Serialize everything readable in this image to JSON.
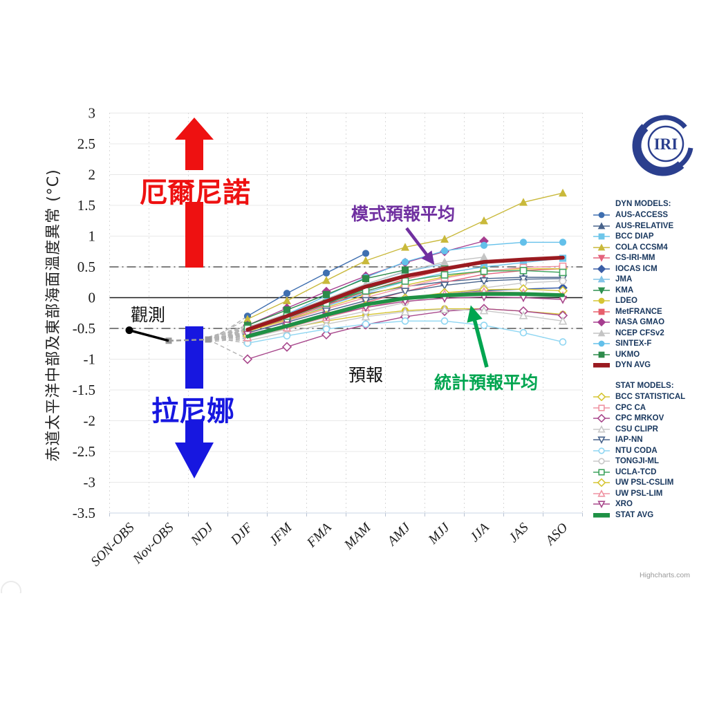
{
  "header": {
    "logo_text": "IRI"
  },
  "credit": "Highcharts.com",
  "annotations": {
    "el_nino": "厄爾尼諾",
    "la_nina": "拉尼娜",
    "observed": "觀測",
    "forecast": "預報",
    "dyn_avg": "模式預報平均",
    "stat_avg": "統計預報平均"
  },
  "colors": {
    "el_nino_arrow": "#ee1111",
    "la_nina_arrow": "#1717e0",
    "dyn_avg_annotation": "#7030a0",
    "stat_avg_annotation": "#00a550",
    "legend_text": "#17365d"
  },
  "chart_data": {
    "type": "line",
    "title": "",
    "ylabel": "赤道太平洋中部及東部海面溫度異常 (°C)",
    "xlabel": "",
    "ylim": [
      -3.5,
      3
    ],
    "ytick_step": 0.5,
    "grid": true,
    "legend_position": "right",
    "categories": [
      "SON-OBS",
      "Nov-OBS",
      "NDJ",
      "DJF",
      "JFM",
      "FMA",
      "MAM",
      "AMJ",
      "MJJ",
      "JJA",
      "JAS",
      "ASO"
    ],
    "reference_lines": [
      {
        "y": 0,
        "style": "solid",
        "color": "#1a1a1a"
      },
      {
        "y": 0.5,
        "style": "dash-dot",
        "color": "#333333"
      },
      {
        "y": -0.5,
        "style": "dash-dot",
        "color": "#333333"
      }
    ],
    "observation": {
      "name": "觀測",
      "color": "#000000",
      "values": [
        -0.53,
        -0.7,
        null,
        null,
        null,
        null,
        null,
        null,
        null,
        null,
        null,
        null
      ],
      "extension": {
        "color": "#9a9a9a",
        "values": [
          null,
          -0.7,
          -0.68,
          null,
          null,
          null,
          null,
          null,
          null,
          null,
          null,
          null
        ]
      }
    },
    "fan_origin": {
      "category": "NDJ",
      "value": -0.68
    },
    "legend_groups": [
      {
        "id": "DYN",
        "title": "DYN MODELS:"
      },
      {
        "id": "STAT",
        "title": "STAT MODELS:"
      }
    ],
    "series": [
      {
        "name": "AUS-ACCESS",
        "group": "DYN",
        "color": "#3f6fb0",
        "marker": "circle",
        "marker_fill": "filled",
        "avg": false,
        "values": [
          null,
          null,
          null,
          -0.3,
          0.07,
          0.4,
          0.72,
          null,
          null,
          null,
          null,
          null
        ]
      },
      {
        "name": "AUS-RELATIVE",
        "group": "DYN",
        "color": "#49648c",
        "marker": "triangle",
        "marker_fill": "filled",
        "avg": false,
        "values": [
          null,
          null,
          null,
          -0.5,
          -0.3,
          -0.1,
          0.06,
          0.18,
          0.26,
          0.31,
          0.33,
          0.33
        ]
      },
      {
        "name": "BCC DIAP",
        "group": "DYN",
        "color": "#6ec6ea",
        "marker": "square",
        "marker_fill": "filled",
        "avg": false,
        "values": [
          null,
          null,
          null,
          -0.58,
          -0.38,
          -0.14,
          0.08,
          0.26,
          0.4,
          0.5,
          0.57,
          0.64
        ]
      },
      {
        "name": "COLA CCSM4",
        "group": "DYN",
        "color": "#c9b93b",
        "marker": "triangle",
        "marker_fill": "filled",
        "avg": false,
        "values": [
          null,
          null,
          null,
          -0.35,
          -0.05,
          0.28,
          0.6,
          0.82,
          0.95,
          1.25,
          1.55,
          1.7
        ]
      },
      {
        "name": "CS-IRI-MM",
        "group": "DYN",
        "color": "#e4637c",
        "marker": "triangle-down",
        "marker_fill": "filled",
        "avg": false,
        "values": [
          null,
          null,
          null,
          -0.62,
          -0.45,
          -0.26,
          -0.08,
          0.1,
          0.25,
          0.38,
          0.44,
          0.47
        ]
      },
      {
        "name": "IOCAS ICM",
        "group": "DYN",
        "color": "#3b5ea6",
        "marker": "diamond",
        "marker_fill": "filled",
        "avg": false,
        "values": [
          null,
          null,
          null,
          -0.6,
          -0.44,
          -0.28,
          -0.13,
          -0.02,
          0.06,
          0.11,
          0.14,
          0.16
        ]
      },
      {
        "name": "JMA",
        "group": "DYN",
        "color": "#82c3e6",
        "marker": "triangle",
        "marker_fill": "filled",
        "avg": false,
        "values": [
          null,
          null,
          null,
          -0.5,
          -0.28,
          -0.02,
          0.22,
          0.42,
          0.55,
          null,
          null,
          null
        ]
      },
      {
        "name": "KMA",
        "group": "DYN",
        "color": "#2f9150",
        "marker": "triangle-down",
        "marker_fill": "filled",
        "avg": false,
        "values": [
          null,
          null,
          null,
          -0.55,
          -0.33,
          -0.1,
          0.14,
          0.33,
          0.47,
          null,
          null,
          null
        ]
      },
      {
        "name": "LDEO",
        "group": "DYN",
        "color": "#d6c533",
        "marker": "circle",
        "marker_fill": "filled",
        "avg": false,
        "values": [
          null,
          null,
          null,
          -0.62,
          -0.5,
          -0.38,
          -0.28,
          -0.21,
          -0.18,
          -0.18,
          -0.22,
          -0.27
        ]
      },
      {
        "name": "MetFRANCE",
        "group": "DYN",
        "color": "#e75f6c",
        "marker": "square",
        "marker_fill": "filled",
        "avg": false,
        "values": [
          null,
          null,
          null,
          -0.55,
          -0.35,
          -0.12,
          0.1,
          0.3,
          0.45,
          null,
          null,
          null
        ]
      },
      {
        "name": "NASA GMAO",
        "group": "DYN",
        "color": "#a63d8f",
        "marker": "diamond",
        "marker_fill": "filled",
        "avg": false,
        "values": [
          null,
          null,
          null,
          -0.45,
          -0.17,
          0.1,
          0.35,
          0.57,
          0.75,
          0.92,
          null,
          null
        ]
      },
      {
        "name": "NCEP CFSv2",
        "group": "DYN",
        "color": "#c4c4c4",
        "marker": "triangle",
        "marker_fill": "filled",
        "avg": false,
        "values": [
          null,
          null,
          null,
          -0.48,
          -0.26,
          -0.02,
          0.22,
          0.43,
          0.58,
          0.66,
          null,
          null
        ]
      },
      {
        "name": "SINTEX-F",
        "group": "DYN",
        "color": "#63c0ea",
        "marker": "circle",
        "marker_fill": "filled",
        "avg": false,
        "values": [
          null,
          null,
          null,
          -0.52,
          -0.27,
          0.03,
          0.33,
          0.58,
          0.76,
          0.85,
          0.9,
          0.9
        ]
      },
      {
        "name": "UKMO",
        "group": "DYN",
        "color": "#2c8b4a",
        "marker": "square",
        "marker_fill": "filled",
        "avg": false,
        "values": [
          null,
          null,
          null,
          -0.45,
          -0.2,
          0.05,
          0.31,
          0.45,
          null,
          null,
          null,
          null
        ]
      },
      {
        "name": "DYN AVG",
        "group": "DYN",
        "color": "#9a1a20",
        "marker": "none",
        "marker_fill": "filled",
        "avg": true,
        "values": [
          null,
          null,
          null,
          -0.52,
          -0.3,
          -0.06,
          0.18,
          0.35,
          0.47,
          0.58,
          0.62,
          0.65
        ]
      },
      {
        "name": "BCC STATISTICAL",
        "group": "STAT",
        "color": "#d6c533",
        "marker": "diamond",
        "marker_fill": "open",
        "avg": false,
        "values": [
          null,
          null,
          null,
          -0.55,
          -0.36,
          -0.16,
          0.04,
          0.2,
          0.34,
          0.44,
          0.47,
          0.47
        ]
      },
      {
        "name": "CPC CA",
        "group": "STAT",
        "color": "#ef93a2",
        "marker": "square",
        "marker_fill": "open",
        "avg": false,
        "values": [
          null,
          null,
          null,
          -0.58,
          -0.38,
          -0.18,
          0.0,
          0.17,
          0.32,
          0.43,
          0.49,
          0.51
        ]
      },
      {
        "name": "CPC MRKOV",
        "group": "STAT",
        "color": "#a8488c",
        "marker": "diamond",
        "marker_fill": "open",
        "avg": false,
        "values": [
          null,
          null,
          null,
          -1.0,
          -0.8,
          -0.6,
          -0.44,
          -0.31,
          -0.22,
          -0.18,
          -0.22,
          -0.29
        ]
      },
      {
        "name": "CSU CLIPR",
        "group": "STAT",
        "color": "#c8c8c8",
        "marker": "triangle",
        "marker_fill": "open",
        "avg": false,
        "values": [
          null,
          null,
          null,
          -0.7,
          -0.56,
          -0.43,
          -0.31,
          -0.23,
          -0.19,
          -0.21,
          -0.29,
          -0.38
        ]
      },
      {
        "name": "IAP-NN",
        "group": "STAT",
        "color": "#49648c",
        "marker": "triangle-down",
        "marker_fill": "open",
        "avg": false,
        "values": [
          null,
          null,
          null,
          -0.57,
          -0.4,
          -0.22,
          -0.05,
          0.1,
          0.2,
          0.27,
          0.3,
          0.31
        ]
      },
      {
        "name": "NTU CODA",
        "group": "STAT",
        "color": "#8fd6f2",
        "marker": "circle",
        "marker_fill": "open",
        "avg": false,
        "values": [
          null,
          null,
          null,
          -0.74,
          -0.62,
          -0.51,
          -0.43,
          -0.38,
          -0.38,
          -0.45,
          -0.57,
          -0.72
        ]
      },
      {
        "name": "TONGJI-ML",
        "group": "STAT",
        "color": "#c8c8c8",
        "marker": "circle",
        "marker_fill": "open",
        "avg": false,
        "values": [
          null,
          null,
          null,
          -0.66,
          -0.51,
          -0.36,
          -0.22,
          -0.08,
          0.05,
          0.16,
          0.24,
          0.27
        ]
      },
      {
        "name": "UCLA-TCD",
        "group": "STAT",
        "color": "#3fa45f",
        "marker": "square",
        "marker_fill": "open",
        "avg": false,
        "values": [
          null,
          null,
          null,
          -0.5,
          -0.3,
          -0.09,
          0.11,
          0.27,
          0.37,
          0.43,
          0.44,
          0.41
        ]
      },
      {
        "name": "UW PSL-CSLIM",
        "group": "STAT",
        "color": "#d6c533",
        "marker": "diamond",
        "marker_fill": "open",
        "avg": false,
        "values": [
          null,
          null,
          null,
          -0.62,
          -0.46,
          -0.29,
          -0.13,
          -0.01,
          0.08,
          0.13,
          0.14,
          0.11
        ]
      },
      {
        "name": "UW PSL-LIM",
        "group": "STAT",
        "color": "#ef93a2",
        "marker": "triangle",
        "marker_fill": "open",
        "avg": false,
        "values": [
          null,
          null,
          null,
          -0.65,
          -0.49,
          -0.32,
          -0.16,
          -0.03,
          0.06,
          0.1,
          0.08,
          0.03
        ]
      },
      {
        "name": "XRO",
        "group": "STAT",
        "color": "#a8488c",
        "marker": "triangle-down",
        "marker_fill": "open",
        "avg": false,
        "values": [
          null,
          null,
          null,
          -0.6,
          -0.45,
          -0.3,
          -0.16,
          -0.06,
          -0.01,
          0.01,
          0.0,
          -0.03
        ]
      },
      {
        "name": "STAT AVG",
        "group": "STAT",
        "color": "#1e9145",
        "marker": "none",
        "marker_fill": "filled",
        "avg": true,
        "values": [
          null,
          null,
          null,
          -0.63,
          -0.46,
          -0.28,
          -0.11,
          -0.01,
          0.04,
          0.06,
          0.06,
          0.04
        ]
      }
    ]
  }
}
